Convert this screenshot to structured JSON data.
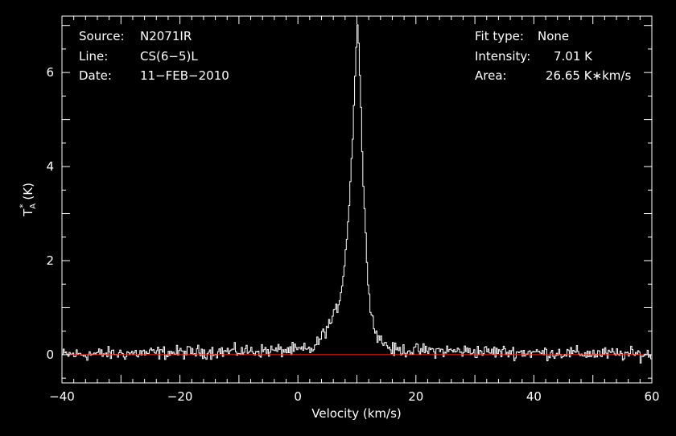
{
  "info_left": [
    {
      "key": "Source:",
      "value": "N2071IR"
    },
    {
      "key": "Line:",
      "value": "CS(6−5)L"
    },
    {
      "key": "Date:",
      "value": "11−FEB−2010"
    }
  ],
  "info_right": [
    {
      "key": "Fit type:",
      "value": "None"
    },
    {
      "key": "Intensity:",
      "value": "7.01 K"
    },
    {
      "key": "Area:",
      "value": "26.65 K∗km/s"
    }
  ],
  "chart_data": {
    "type": "line",
    "xlabel": "Velocity (km/s)",
    "ylabel": "T_A^* (K)",
    "ylabel_main": "T",
    "ylabel_sub": "A",
    "ylabel_sup": "*",
    "ylabel_unit": " (K)",
    "xlim": [
      -40,
      60
    ],
    "ylim": [
      -0.6,
      7.2
    ],
    "xticks": [
      -40,
      -20,
      0,
      20,
      40,
      60
    ],
    "xtick_labels": [
      "−40",
      "−20",
      "0",
      "20",
      "40",
      "60"
    ],
    "yticks": [
      0,
      2,
      4,
      6
    ],
    "ytick_labels": [
      "0",
      "2",
      "4",
      "6"
    ],
    "grid": false,
    "series": [
      {
        "color": "#ffffff",
        "profile": "spectrum",
        "x": [
          -40,
          1,
          2,
          3,
          4,
          5,
          6,
          7,
          7.5,
          8,
          8.5,
          9,
          9.3,
          9.6,
          9.8,
          10,
          10.2,
          10.4,
          10.7,
          11,
          11.5,
          12,
          12.5,
          13,
          14,
          15,
          16,
          60
        ],
        "y": [
          0,
          0.1,
          0.1,
          0.2,
          0.4,
          0.6,
          0.8,
          1.2,
          1.6,
          2.2,
          3.0,
          4.1,
          5.0,
          6.0,
          6.6,
          7.01,
          6.6,
          6.0,
          4.8,
          3.6,
          2.2,
          1.3,
          0.8,
          0.5,
          0.3,
          0.2,
          0.1,
          0
        ],
        "noise_rms": 0.07
      },
      {
        "color": "#ff2020",
        "profile": "baseline",
        "x": [
          -40,
          60
        ],
        "y": [
          0,
          0
        ]
      }
    ]
  }
}
